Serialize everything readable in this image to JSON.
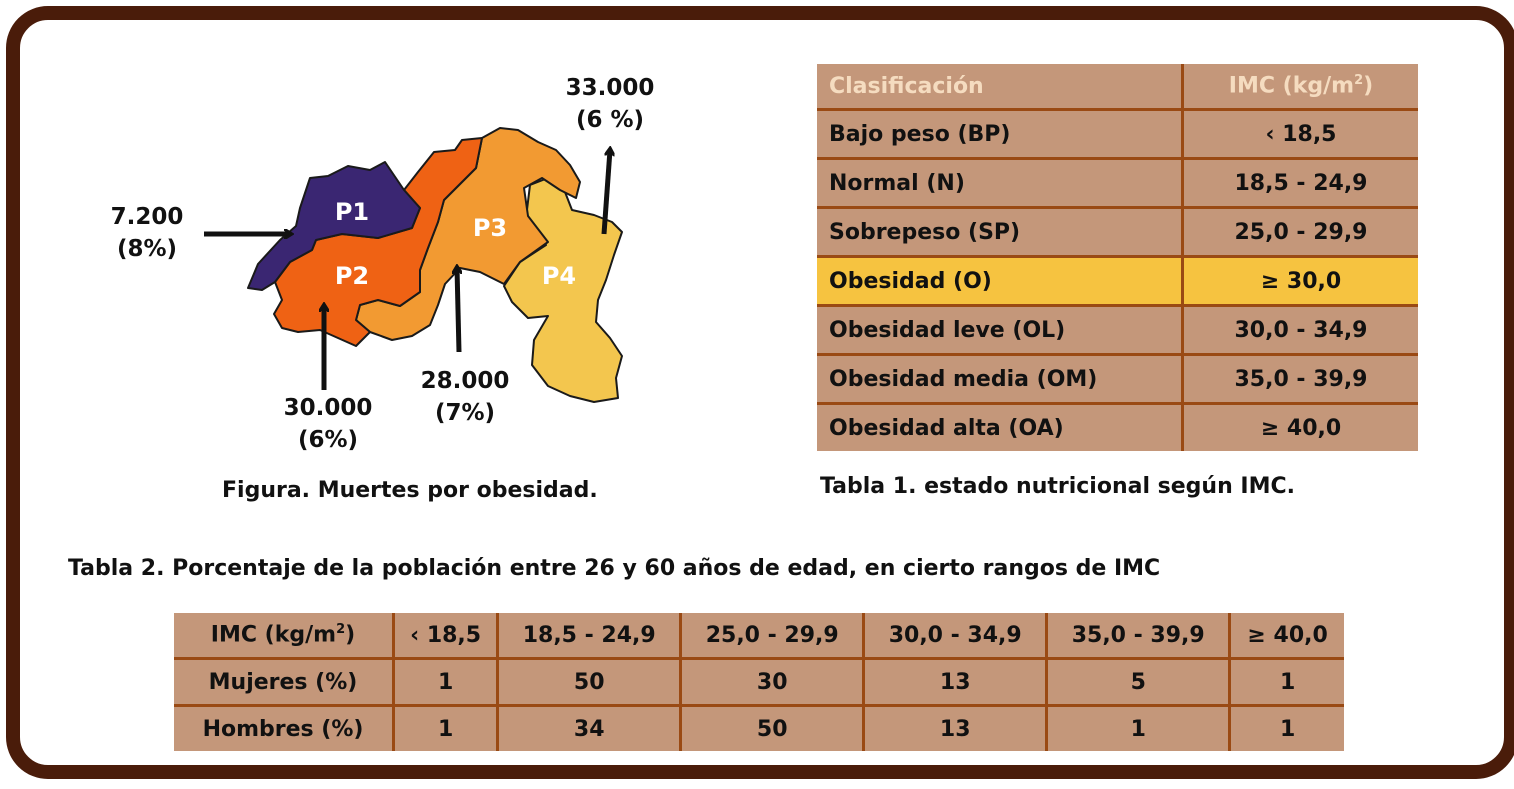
{
  "figure": {
    "caption": "Figura. Muertes por obesidad.",
    "regions": [
      {
        "name": "P1",
        "color": "#3a2672"
      },
      {
        "name": "P2",
        "color": "#ef6214"
      },
      {
        "name": "P3",
        "color": "#f29a32"
      },
      {
        "name": "P4",
        "color": "#f3c64e"
      }
    ],
    "labels": [
      {
        "value": "7.200",
        "pct": "(8%)"
      },
      {
        "value": "30.000",
        "pct": "(6%)"
      },
      {
        "value": "28.000",
        "pct": "(7%)"
      },
      {
        "value": "33.000",
        "pct": "(6 %)"
      }
    ]
  },
  "table1": {
    "caption": "Tabla 1. estado nutricional según IMC.",
    "header": {
      "col1": "Clasificación",
      "col2_prefix": "IMC (kg/m",
      "col2_sup": "2",
      "col2_suffix": ")"
    },
    "rows": [
      {
        "label": "Bajo peso (BP)",
        "value": "‹ 18,5"
      },
      {
        "label": "Normal (N)",
        "value": "18,5 - 24,9"
      },
      {
        "label": "Sobrepeso (SP)",
        "value": "25,0 - 29,9"
      },
      {
        "label": "Obesidad (O)",
        "value": "≥ 30,0",
        "highlight": true
      },
      {
        "label": "Obesidad leve (OL)",
        "value": "30,0 - 34,9"
      },
      {
        "label": "Obesidad media (OM)",
        "value": "35,0 - 39,9"
      },
      {
        "label": "Obesidad alta (OA)",
        "value": "≥ 40,0"
      }
    ],
    "colors": {
      "cell": "#c4977a",
      "highlight": "#f6c340",
      "header_text": "#f5dcc0",
      "border": "#9a4a14"
    }
  },
  "table2": {
    "title": "Tabla 2. Porcentaje de la población entre 26 y 60 años de edad, en cierto rangos de IMC",
    "header": {
      "prefix": "IMC (kg/m",
      "sup": "2",
      "suffix": ")"
    },
    "columns": [
      "‹ 18,5",
      "18,5 - 24,9",
      "25,0 - 29,9",
      "30,0 - 34,9",
      "35,0 - 39,9",
      "≥ 40,0"
    ],
    "rows": [
      {
        "label": "Mujeres (%)",
        "values": [
          "1",
          "50",
          "30",
          "13",
          "5",
          "1"
        ]
      },
      {
        "label": "Hombres (%)",
        "values": [
          "1",
          "34",
          "50",
          "13",
          "1",
          "1"
        ]
      }
    ]
  },
  "frame_color": "#4a1c0a"
}
